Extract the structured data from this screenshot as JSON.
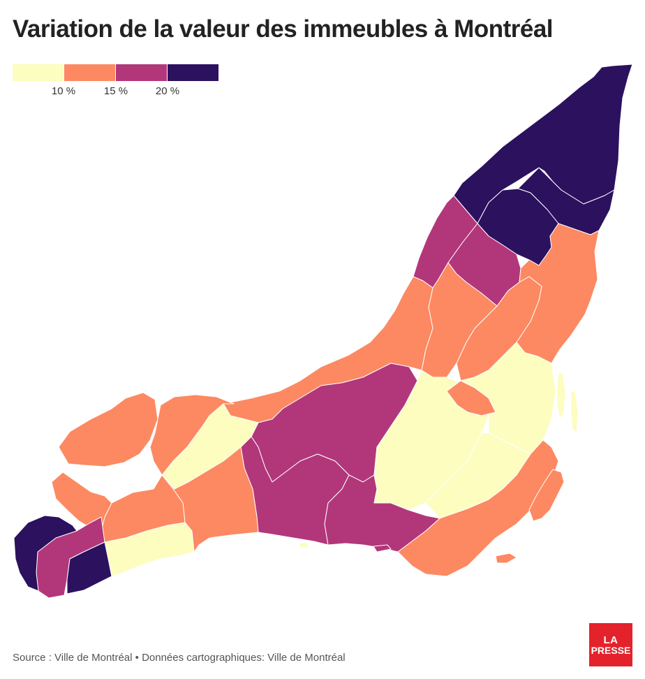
{
  "title": "Variation de la valeur des immeubles à Montréal",
  "legend": {
    "colors": [
      "#fcfdbf",
      "#fc8961",
      "#b2377a",
      "#2c115f"
    ],
    "ticks": [
      "10 %",
      "15 %",
      "20 %"
    ]
  },
  "source": "Source : Ville de Montréal • Données cartographiques: Ville de Montréal",
  "logo": {
    "line1": "LA",
    "line2": "PRESSE",
    "color": "#e4222b"
  }
}
